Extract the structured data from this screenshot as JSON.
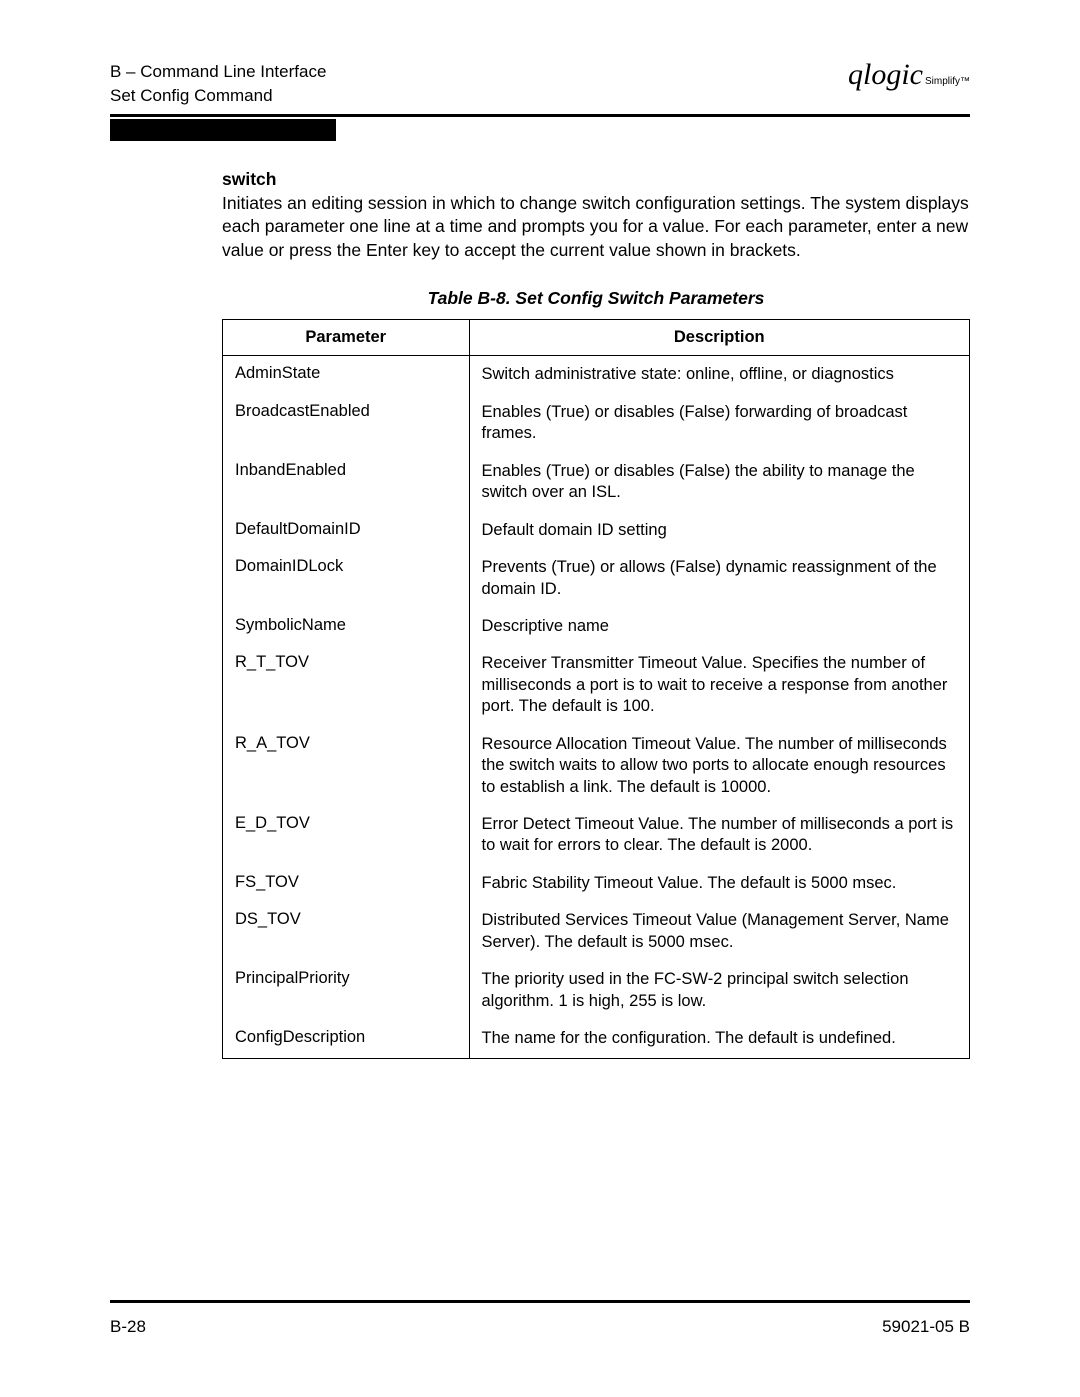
{
  "header": {
    "line1": "B – Command Line Interface",
    "line2": "Set Config Command",
    "logo_main": "qlogic",
    "logo_sub": "Simplify™"
  },
  "section": {
    "title": "switch",
    "intro": "Initiates an editing session in which to change switch configuration settings. The system displays each parameter one line at a time and prompts you for a value. For each parameter, enter a new value or press the Enter key to accept the current value shown in brackets."
  },
  "table": {
    "caption": "Table B-8. Set Config Switch Parameters",
    "columns": [
      "Parameter",
      "Description"
    ],
    "rows": [
      {
        "param": "AdminState",
        "desc": "Switch administrative state: online, offline, or diagnostics"
      },
      {
        "param": "BroadcastEnabled",
        "desc": "Enables (True) or disables (False) forwarding of broadcast frames."
      },
      {
        "param": "InbandEnabled",
        "desc": "Enables (True) or disables (False) the ability to manage the switch over an ISL."
      },
      {
        "param": "DefaultDomainID",
        "desc": "Default domain ID setting"
      },
      {
        "param": "DomainIDLock",
        "desc": "Prevents (True) or allows (False) dynamic reassignment of the domain ID."
      },
      {
        "param": "SymbolicName",
        "desc": "Descriptive name"
      },
      {
        "param": "R_T_TOV",
        "desc": "Receiver Transmitter Timeout Value. Specifies the number of milliseconds a port is to wait to receive a response from another port. The default is 100."
      },
      {
        "param": "R_A_TOV",
        "desc": "Resource Allocation Timeout Value. The number of milliseconds the switch waits to allow two ports to allocate enough resources to establish a link. The default is 10000."
      },
      {
        "param": "E_D_TOV",
        "desc": "Error Detect Timeout Value. The number of milliseconds a port is to wait for errors to clear. The default is 2000."
      },
      {
        "param": "FS_TOV",
        "desc": "Fabric Stability Timeout Value. The default is 5000 msec."
      },
      {
        "param": "DS_TOV",
        "desc": "Distributed Services Timeout Value (Management Server, Name Server). The default is 5000 msec."
      },
      {
        "param": "PrincipalPriority",
        "desc": "The priority used in the FC-SW-2 principal switch selection algorithm. 1 is high, 255 is low."
      },
      {
        "param": "ConfigDescription",
        "desc": "The name for the configuration. The default is undefined."
      }
    ]
  },
  "footer": {
    "left": "B-28",
    "right": "59021-05  B"
  }
}
